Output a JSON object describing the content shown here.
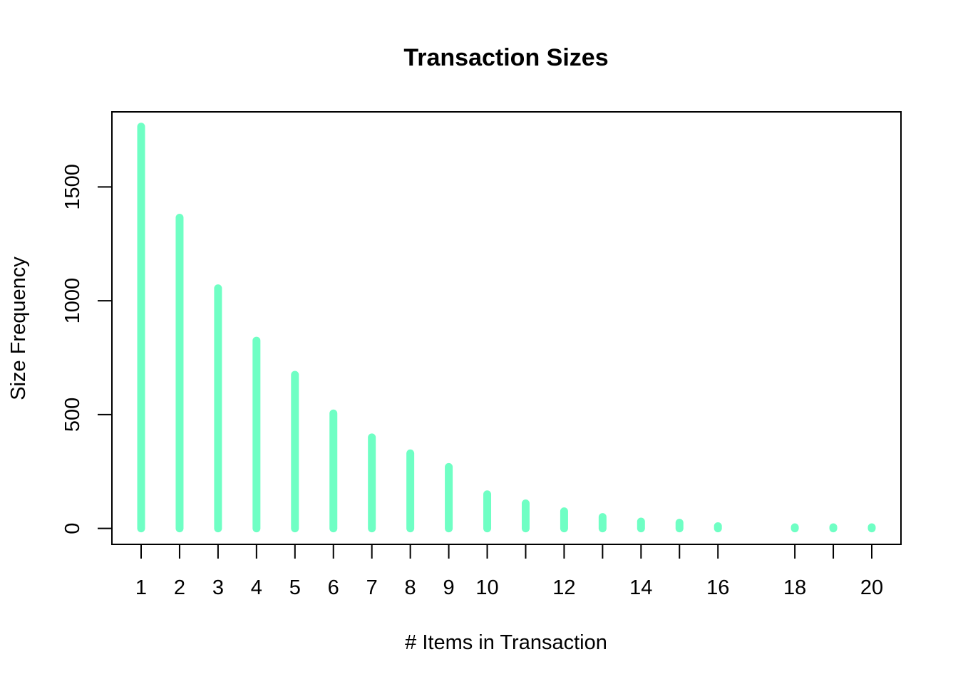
{
  "chart_data": {
    "type": "bar",
    "title": "Transaction Sizes",
    "xlabel": "# Items in Transaction",
    "ylabel": "Size Frequency",
    "x": [
      1,
      2,
      3,
      4,
      5,
      6,
      7,
      8,
      9,
      10,
      11,
      12,
      13,
      14,
      15,
      16,
      18,
      19,
      20
    ],
    "values": [
      1765,
      1365,
      1055,
      825,
      675,
      505,
      400,
      330,
      270,
      150,
      110,
      75,
      50,
      30,
      25,
      10,
      5,
      5,
      5
    ],
    "xlim": [
      0.24,
      20.76
    ],
    "ylim": [
      -70,
      1830
    ],
    "x_ticks": [
      1,
      2,
      3,
      4,
      5,
      6,
      7,
      8,
      9,
      10,
      12,
      14,
      16,
      18,
      20
    ],
    "x_tick_marks": [
      1,
      2,
      3,
      4,
      5,
      6,
      7,
      8,
      9,
      10,
      11,
      12,
      13,
      14,
      15,
      16,
      18,
      19,
      20
    ],
    "y_ticks": [
      0,
      500,
      1000,
      1500
    ],
    "bar_color": "#6fffc4",
    "grid": false
  }
}
